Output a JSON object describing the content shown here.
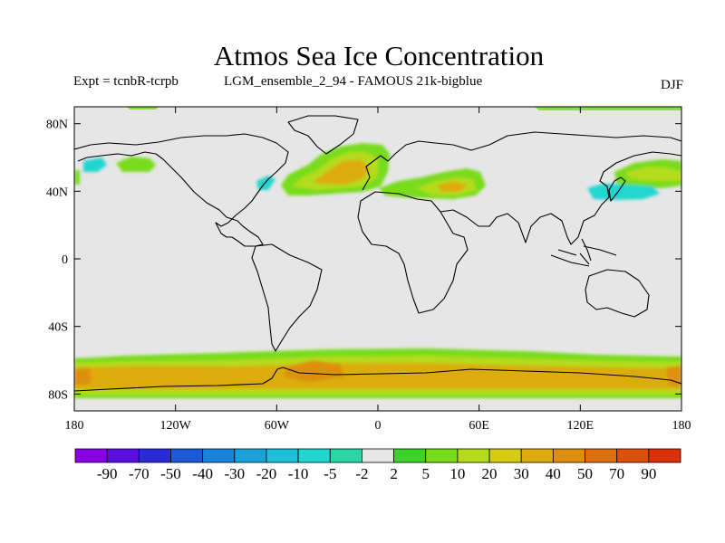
{
  "title": "Atmos Sea Ice Concentration",
  "subtitle_left": "Expt = tcnbR-tcrpb",
  "subtitle_center": "LGM_ensemble_2_94 - FAMOUS 21k-bigblue",
  "season": "DJF",
  "map": {
    "lat_ticks": [
      "80N",
      "40N",
      "0",
      "40S",
      "80S"
    ],
    "lon_ticks": [
      "180",
      "120W",
      "60W",
      "0",
      "60E",
      "120E",
      "180"
    ],
    "lat_range": [
      -90,
      90
    ],
    "lon_range": [
      -180,
      180
    ],
    "background_color": "#e6e6e6"
  },
  "colorbar": {
    "labels": [
      "-90",
      "-70",
      "-50",
      "-40",
      "-30",
      "-20",
      "-10",
      "-5",
      "-2",
      "2",
      "5",
      "10",
      "20",
      "30",
      "40",
      "50",
      "70",
      "90"
    ],
    "colors": [
      "#8a00e6",
      "#5a10e0",
      "#2a2ad8",
      "#1a5ad2",
      "#1a82d8",
      "#1aa2d8",
      "#1cc0d8",
      "#20d6d0",
      "#2ad6a8",
      "#e6e6e6",
      "#3cd22a",
      "#78dc1a",
      "#b4dc1a",
      "#d6cc12",
      "#dcac10",
      "#dc900e",
      "#dc700e",
      "#dc500c",
      "#dc3008"
    ]
  }
}
